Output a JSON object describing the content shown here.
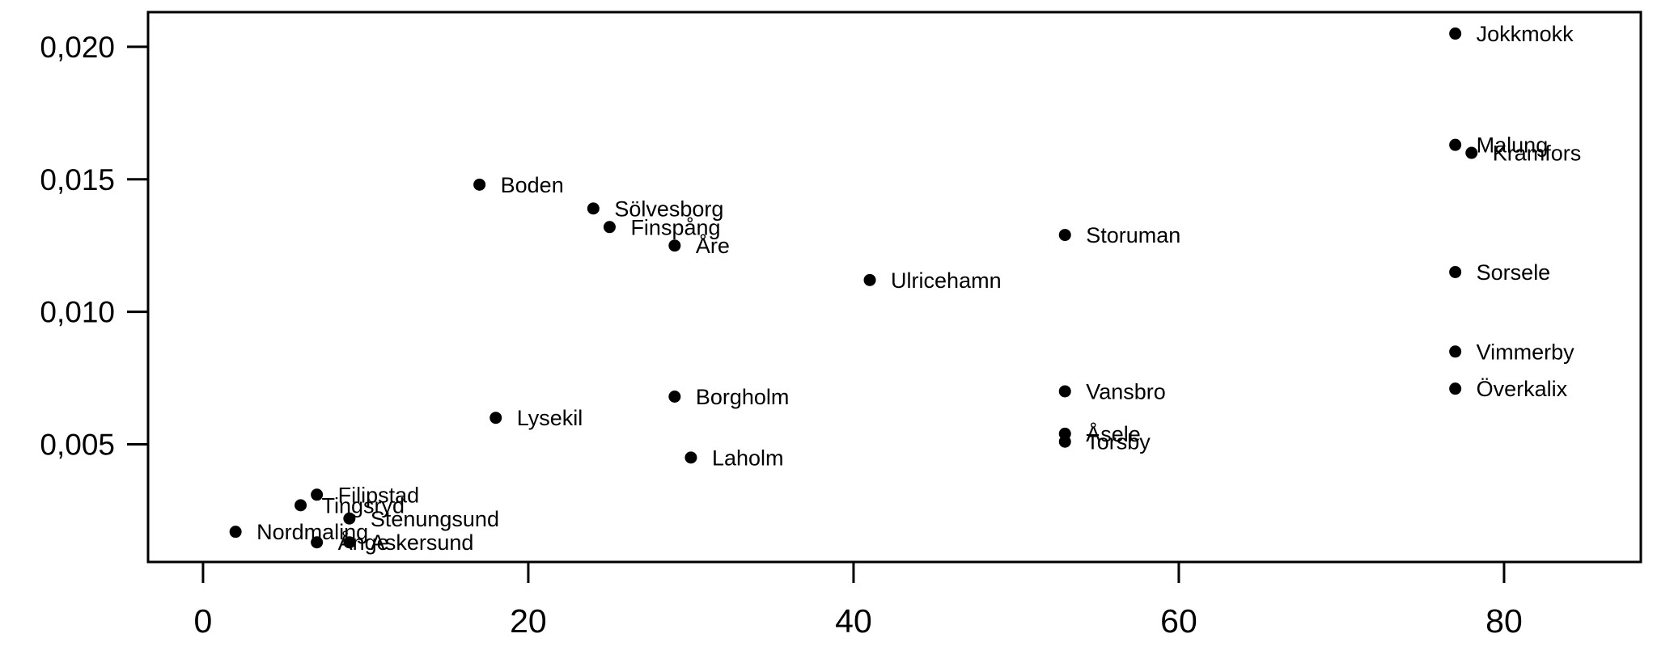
{
  "chart_data": {
    "type": "scatter",
    "title": "",
    "xlabel": "",
    "ylabel": "",
    "grid": false,
    "legend": "none",
    "background_color": "#ffffff",
    "point_color": "#000000",
    "text_color": "#000000",
    "marker": "filled-circle",
    "decimal_style": "comma",
    "xlim": [
      -3.38,
      88.41
    ],
    "ylim": [
      0.00056,
      0.02131
    ],
    "x_ticks": [
      {
        "label": "0",
        "value": 0
      },
      {
        "label": "20",
        "value": 20
      },
      {
        "label": "40",
        "value": 40
      },
      {
        "label": "60",
        "value": 60
      },
      {
        "label": "80",
        "value": 80
      }
    ],
    "y_ticks": [
      {
        "label": "0,005",
        "value": 0.005
      },
      {
        "label": "0,010",
        "value": 0.01
      },
      {
        "label": "0,015",
        "value": 0.015
      },
      {
        "label": "0,020",
        "value": 0.02
      }
    ],
    "points": [
      {
        "name": "Jokkmokk",
        "x": 77,
        "y": 0.0205
      },
      {
        "name": "Malung",
        "x": 77,
        "y": 0.0163
      },
      {
        "name": "Kramfors",
        "x": 78,
        "y": 0.016
      },
      {
        "name": "Boden",
        "x": 17,
        "y": 0.0148
      },
      {
        "name": "Sölvesborg",
        "x": 24,
        "y": 0.0139
      },
      {
        "name": "Finspång",
        "x": 25,
        "y": 0.0132
      },
      {
        "name": "Storuman",
        "x": 53,
        "y": 0.0129
      },
      {
        "name": "Åre",
        "x": 29,
        "y": 0.0125
      },
      {
        "name": "Sorsele",
        "x": 77,
        "y": 0.0115
      },
      {
        "name": "Ulricehamn",
        "x": 41,
        "y": 0.0112
      },
      {
        "name": "Vimmerby",
        "x": 77,
        "y": 0.0085
      },
      {
        "name": "Överkalix",
        "x": 77,
        "y": 0.0071
      },
      {
        "name": "Vansbro",
        "x": 53,
        "y": 0.007
      },
      {
        "name": "Borgholm",
        "x": 29,
        "y": 0.0068
      },
      {
        "name": "Lysekil",
        "x": 18,
        "y": 0.006
      },
      {
        "name": "Åsele",
        "x": 53,
        "y": 0.0054
      },
      {
        "name": "Torsby",
        "x": 53,
        "y": 0.0051
      },
      {
        "name": "Laholm",
        "x": 30,
        "y": 0.0045
      },
      {
        "name": "Filipstad",
        "x": 7,
        "y": 0.0031
      },
      {
        "name": "Tingsryd",
        "x": 6,
        "y": 0.0027
      },
      {
        "name": "Stenungsund",
        "x": 9,
        "y": 0.0022
      },
      {
        "name": "Nordmaling",
        "x": 2,
        "y": 0.0017
      },
      {
        "name": "Ånge",
        "x": 7,
        "y": 0.0013
      },
      {
        "name": "Askersund",
        "x": 9,
        "y": 0.0013
      }
    ]
  }
}
